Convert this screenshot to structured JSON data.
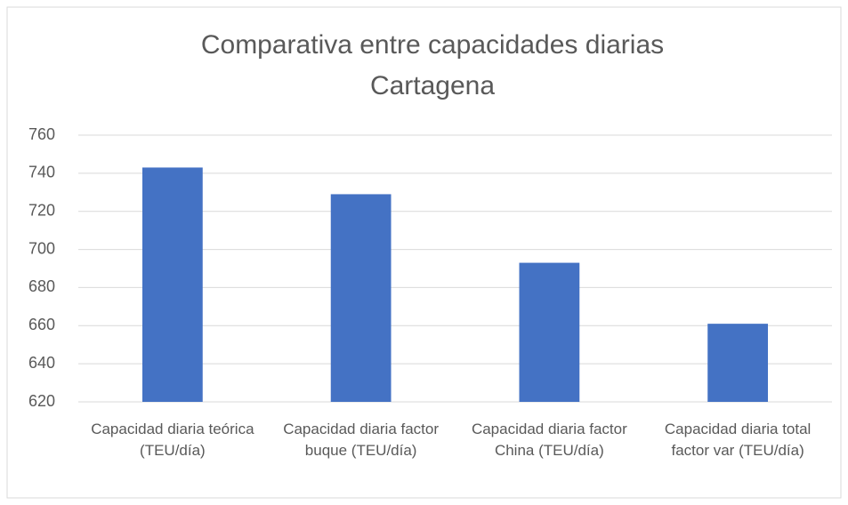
{
  "chart_data": {
    "type": "bar",
    "title": [
      "Comparativa entre capacidades diarias",
      "Cartagena"
    ],
    "categories": [
      "Capacidad diaria teórica (TEU/día)",
      "Capacidad diaria factor buque (TEU/día)",
      "Capacidad diaria factor China (TEU/día)",
      "Capacidad diaria total factor var (TEU/día)"
    ],
    "values": [
      743,
      729,
      693,
      661
    ],
    "color": "#4472c4",
    "ylim": [
      620,
      760
    ],
    "yticks": [
      620,
      640,
      660,
      680,
      700,
      720,
      740,
      760
    ],
    "grid": true
  }
}
